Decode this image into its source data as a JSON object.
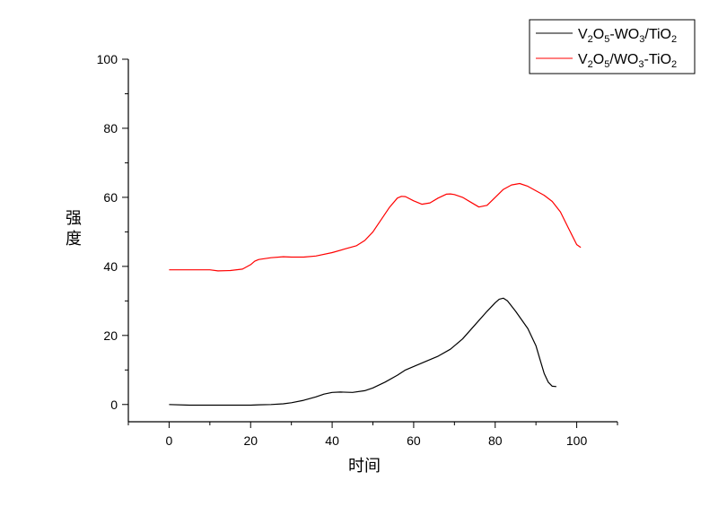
{
  "chart_data": {
    "type": "line",
    "xlabel": "时间",
    "ylabel": "强度",
    "xlim": [
      -10,
      110
    ],
    "ylim": [
      -5,
      100
    ],
    "x_ticks": [
      0,
      20,
      40,
      60,
      80,
      100
    ],
    "y_ticks": [
      0,
      20,
      40,
      60,
      80,
      100
    ],
    "grid": false,
    "legend_position": "top-right",
    "series": [
      {
        "name": "V2O5-WO3/TiO2",
        "legend": {
          "p1": "V",
          "s1": "2",
          "p2": "O",
          "s2": "5",
          "p3": "-WO",
          "s3": "3",
          "p4": "/TiO",
          "s4": "2"
        },
        "color": "#000000",
        "x": [
          0,
          5,
          10,
          15,
          20,
          22,
          25,
          28,
          30,
          33,
          36,
          38,
          40,
          42,
          45,
          48,
          50,
          53,
          56,
          58,
          60,
          63,
          66,
          69,
          72,
          75,
          78,
          80,
          81,
          82,
          83,
          85,
          88,
          90,
          91,
          92,
          93,
          94,
          95
        ],
        "y": [
          0,
          -0.2,
          -0.2,
          -0.2,
          -0.2,
          -0.1,
          0,
          0.2,
          0.5,
          1.2,
          2.2,
          3,
          3.5,
          3.6,
          3.5,
          4,
          4.8,
          6.5,
          8.5,
          10,
          11,
          12.5,
          14,
          16,
          19,
          23,
          27,
          29.5,
          30.5,
          30.8,
          30,
          27,
          22,
          17,
          13,
          9,
          6.5,
          5.3,
          5.2
        ]
      },
      {
        "name": "V2O5/WO3-TiO2",
        "legend": {
          "p1": "V",
          "s1": "2",
          "p2": "O",
          "s2": "5",
          "p3": "/WO",
          "s3": "3",
          "p4": "-TiO",
          "s4": "2"
        },
        "color": "#ff0000",
        "x": [
          0,
          5,
          10,
          12,
          15,
          18,
          20,
          21,
          22,
          25,
          28,
          30,
          33,
          36,
          40,
          43,
          46,
          48,
          50,
          52,
          54,
          56,
          57,
          58,
          60,
          62,
          64,
          66,
          68,
          69,
          70,
          72,
          74,
          76,
          78,
          80,
          82,
          84,
          86,
          88,
          90,
          92,
          94,
          96,
          98,
          100,
          101
        ],
        "y": [
          39,
          39,
          39,
          38.7,
          38.8,
          39.2,
          40.5,
          41.5,
          42,
          42.5,
          42.8,
          42.7,
          42.7,
          43,
          44,
          45,
          46,
          47.5,
          50,
          53.5,
          57,
          59.8,
          60.3,
          60.2,
          59,
          58,
          58.4,
          59.8,
          60.9,
          61,
          60.8,
          60,
          58.6,
          57.2,
          57.7,
          60,
          62.3,
          63.6,
          64,
          63.2,
          61.9,
          60.6,
          58.8,
          55.8,
          51,
          46.3,
          45.5
        ]
      }
    ]
  }
}
